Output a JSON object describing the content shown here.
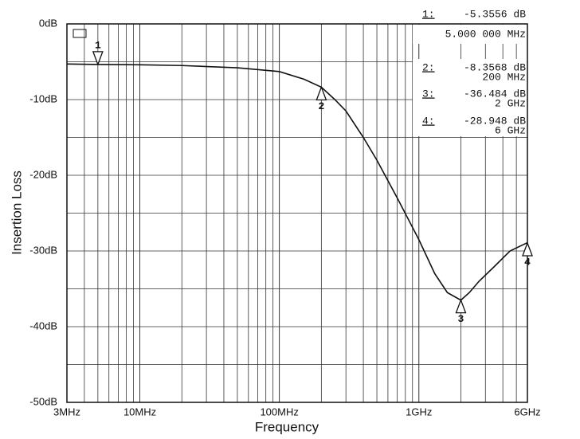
{
  "chart_data": {
    "type": "line",
    "y_label": "Insertion Loss",
    "x_label": "Frequency",
    "log_x": true,
    "grid": true,
    "color": "#111111",
    "xlim": [
      3,
      6000
    ],
    "xticks": [
      {
        "value": 3,
        "label": "3MHz"
      },
      {
        "value": 10,
        "label": "10MHz"
      },
      {
        "value": 100,
        "label": "100MHz"
      },
      {
        "value": 1000,
        "label": "1GHz"
      },
      {
        "value": 6000,
        "label": "6GHz"
      }
    ],
    "ylim": [
      -50,
      0
    ],
    "yticks": [
      {
        "value": 0,
        "label": "0dB"
      },
      {
        "value": -10,
        "label": "-10dB"
      },
      {
        "value": -20,
        "label": "-20dB"
      },
      {
        "value": -30,
        "label": "-30dB"
      },
      {
        "value": -40,
        "label": "-40dB"
      },
      {
        "value": -50,
        "label": "-50dB"
      }
    ],
    "x": [
      3,
      5,
      10,
      20,
      50,
      100,
      150,
      200,
      250,
      300,
      400,
      500,
      700,
      1000,
      1300,
      1600,
      2000,
      2300,
      2700,
      3500,
      4500,
      6000
    ],
    "values": [
      -5.3,
      -5.36,
      -5.4,
      -5.5,
      -5.8,
      -6.3,
      -7.3,
      -8.36,
      -10,
      -11.5,
      -15,
      -18,
      -23,
      -28.5,
      -33,
      -35.5,
      -36.5,
      -35.5,
      -34,
      -32,
      -30,
      -28.9
    ],
    "markers": [
      {
        "name": "1",
        "direction": "down",
        "x": 5,
        "value": -5.3556,
        "readout_name": "1:",
        "value_label": "-5.3556 dB",
        "x_label": "5.000 000 MHz"
      },
      {
        "name": "2",
        "direction": "up",
        "x": 200,
        "value": -8.3568,
        "readout_name": "2:",
        "value_label": "-8.3568 dB",
        "x_label": "200 MHz"
      },
      {
        "name": "3",
        "direction": "up",
        "x": 2000,
        "value": -36.484,
        "readout_name": "3:",
        "value_label": "-36.484 dB",
        "x_label": "2 GHz"
      },
      {
        "name": "4",
        "direction": "up",
        "x": 6000,
        "value": -28.948,
        "readout_name": "4:",
        "value_label": "-28.948 dB",
        "x_label": "6 GHz"
      }
    ]
  }
}
